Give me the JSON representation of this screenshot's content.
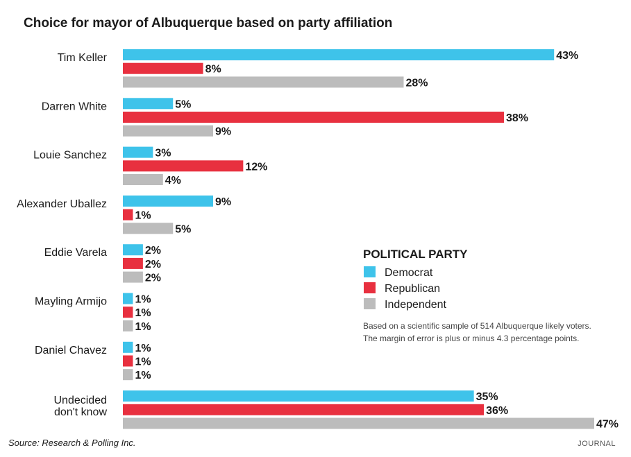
{
  "chart_data": {
    "type": "bar",
    "orientation": "horizontal",
    "title": "Choice for mayor of Albuquerque based on party affiliation",
    "categories": [
      [
        "Tim Keller"
      ],
      [
        "Darren White"
      ],
      [
        "Louie Sanchez"
      ],
      [
        "Alexander Uballez"
      ],
      [
        "Eddie Varela"
      ],
      [
        "Mayling Armijo"
      ],
      [
        "Daniel Chavez"
      ],
      [
        "Undecided",
        "don't know"
      ]
    ],
    "series": [
      {
        "name": "Democrat",
        "color": "#3ec3ea",
        "values": [
          43,
          5,
          3,
          9,
          2,
          1,
          1,
          35
        ]
      },
      {
        "name": "Republican",
        "color": "#e8303f",
        "values": [
          8,
          38,
          12,
          1,
          2,
          1,
          1,
          36
        ]
      },
      {
        "name": "Independent",
        "color": "#bcbcbc",
        "values": [
          28,
          9,
          4,
          5,
          2,
          1,
          1,
          47
        ]
      }
    ],
    "value_suffix": "%",
    "xlim": [
      0,
      47
    ],
    "legend": {
      "title": "POLITICAL PARTY",
      "position": "right"
    },
    "note": [
      "Based on a scientific sample of 514  Albuquerque likely voters.",
      "The margin of error is plus or minus 4.3 percentage points."
    ],
    "source": "Source: Research & Polling Inc.",
    "credit": "JOURNAL"
  }
}
